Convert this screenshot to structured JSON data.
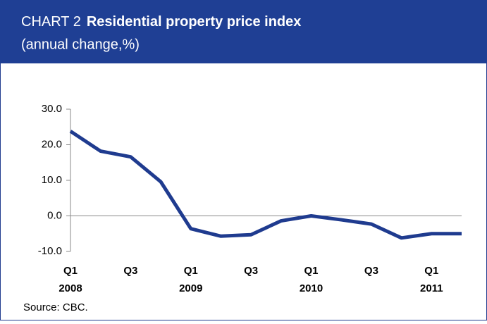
{
  "chart_data": {
    "type": "line",
    "title_prefix": "CHART 2",
    "title": "Residential property price index",
    "subtitle": "(annual change,%)",
    "categories": [
      "Q1",
      null,
      "Q3",
      null,
      "Q1",
      null,
      "Q3",
      null,
      "Q1",
      null,
      "Q3",
      null,
      "Q1",
      null
    ],
    "years": [
      "2008",
      null,
      null,
      null,
      "2009",
      null,
      null,
      null,
      "2010",
      null,
      null,
      null,
      "2011",
      null
    ],
    "series": [
      {
        "name": "Residential property price index",
        "color": "#1f3b8f",
        "values": [
          23.8,
          18.2,
          16.6,
          9.6,
          -3.6,
          -5.7,
          -5.3,
          -1.4,
          0.0,
          -1.1,
          -2.3,
          -6.2,
          -5.0,
          -5.0
        ]
      }
    ],
    "ylim": [
      -10,
      30
    ],
    "yticks": [
      {
        "value": -10,
        "label": "-10.0"
      },
      {
        "value": 0,
        "label": "0.0"
      },
      {
        "value": 10,
        "label": "10.0"
      },
      {
        "value": 20,
        "label": "20.0"
      },
      {
        "value": 30,
        "label": "30.0"
      }
    ],
    "source": "Source: CBC."
  }
}
